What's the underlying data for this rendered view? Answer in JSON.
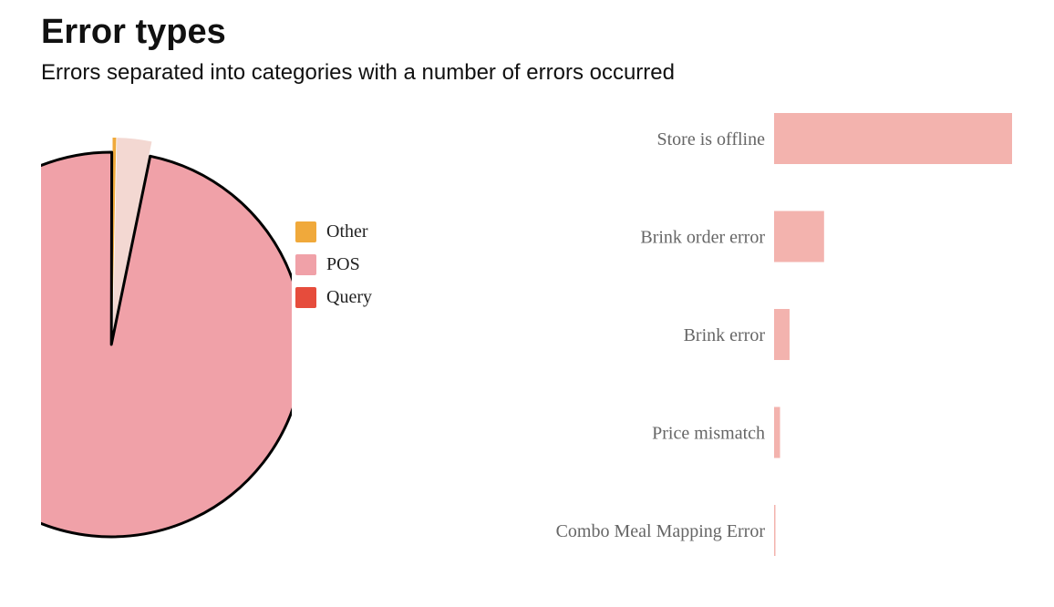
{
  "header": {
    "title": "Error types",
    "subtitle": "Errors separated into categories with a number of errors occurred"
  },
  "colors": {
    "other": "#f0a93b",
    "pos": "#f0a1a8",
    "query": "#e64c3c",
    "pie_small_slice": "#f3d8d2",
    "bar": "#f3b3ae",
    "bar_label": "#666666"
  },
  "chart_data": [
    {
      "type": "pie",
      "title": "",
      "slices": [
        {
          "label": "Other",
          "value": 0.3
        },
        {
          "label": "POS",
          "value": 96.8
        },
        {
          "label": "Query",
          "value": 2.9
        }
      ],
      "legend": [
        "Other",
        "POS",
        "Query"
      ],
      "legend_position": "right"
    },
    {
      "type": "bar",
      "orientation": "horizontal",
      "title": "",
      "categories": [
        "Store is offline",
        "Brink order error",
        "Brink error",
        "Price mismatch",
        "Combo Meal Mapping Error"
      ],
      "values": [
        100,
        21,
        6.5,
        2.5,
        0.5
      ],
      "xlabel": "",
      "ylabel": "",
      "grid": false
    }
  ]
}
